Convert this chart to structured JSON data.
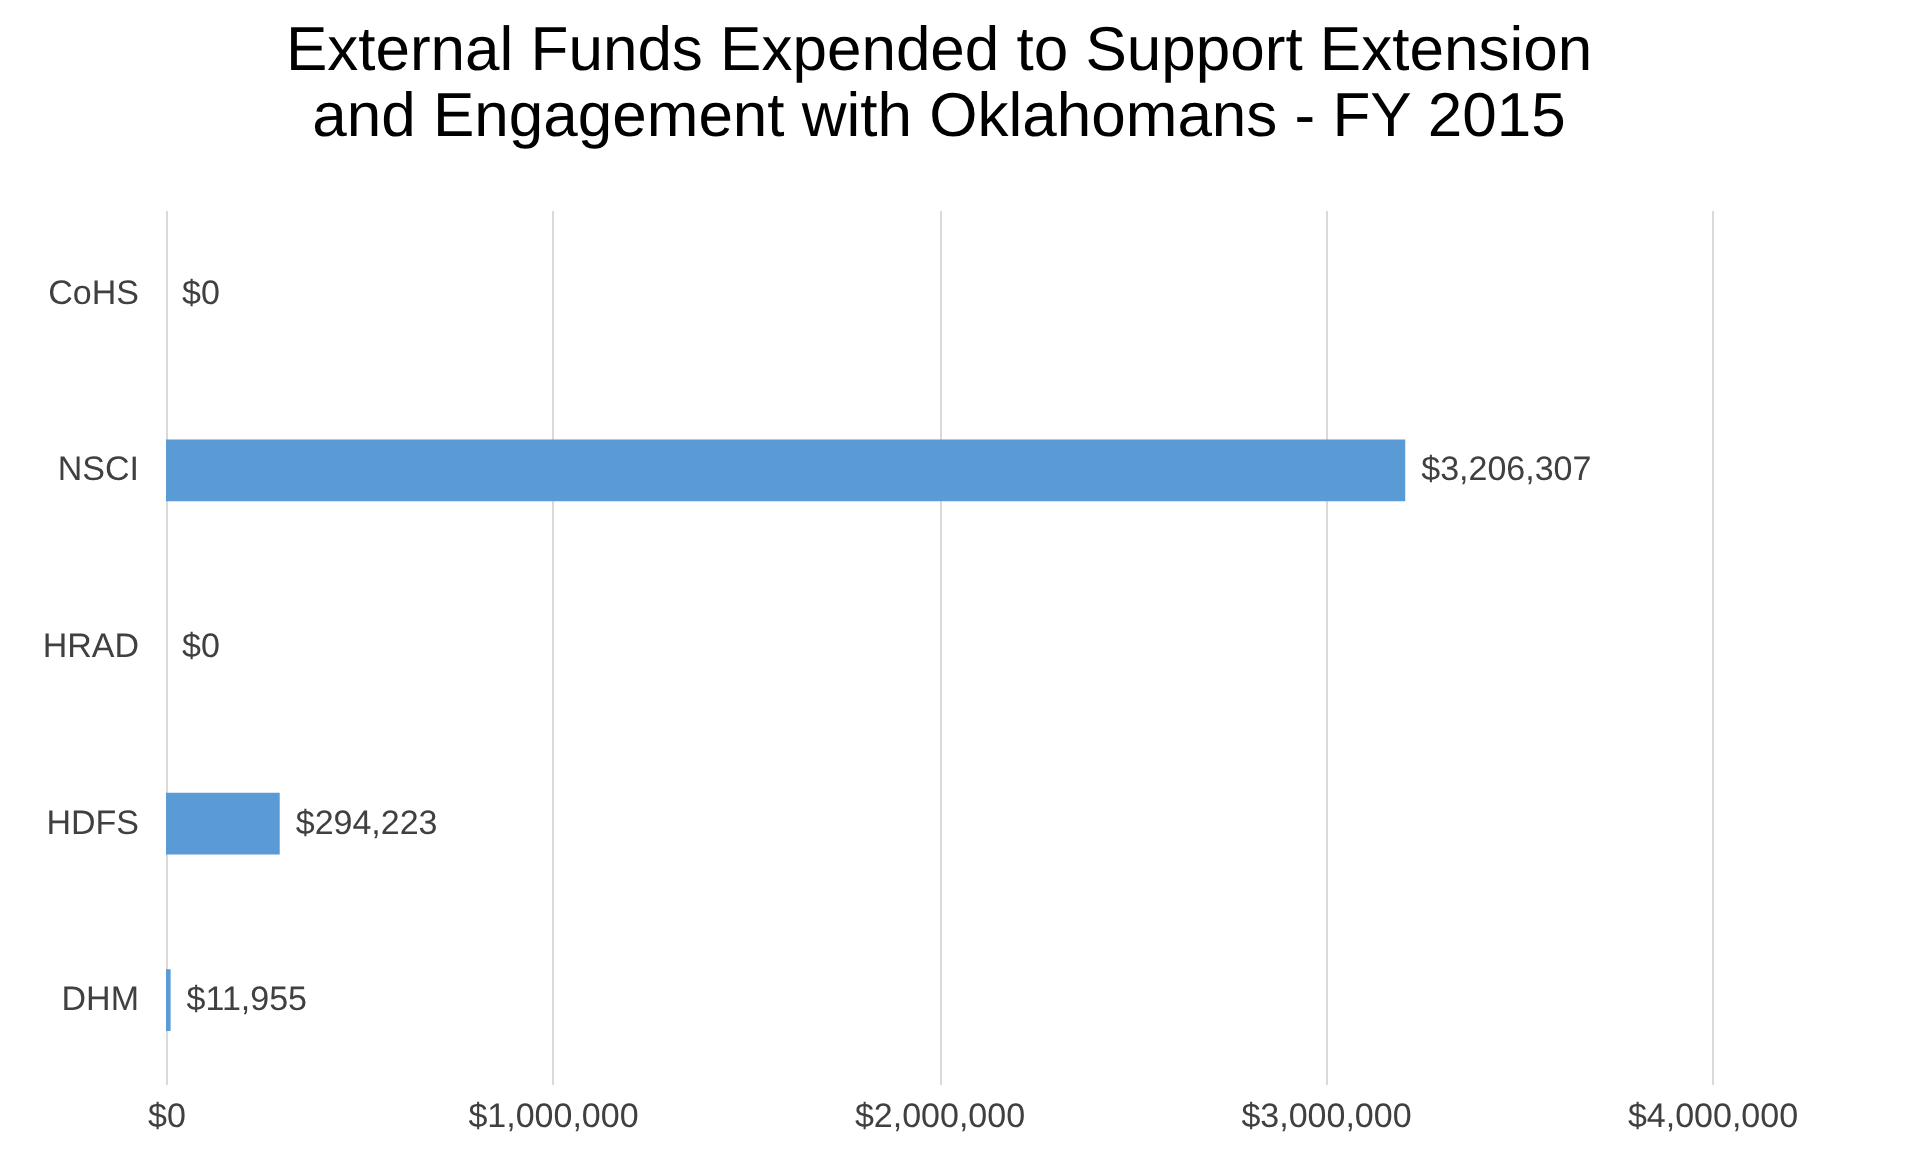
{
  "chart_data": {
    "type": "bar",
    "orientation": "horizontal",
    "title": "External Funds Expended to Support Extension\nand Engagement with Oklahomans - FY 2015",
    "categories": [
      "CoHS",
      "NSCI",
      "HRAD",
      "HDFS",
      "DHM"
    ],
    "values": [
      0,
      3206307,
      0,
      294223,
      11955
    ],
    "value_labels": [
      "$0",
      "$3,206,307",
      "$0",
      "$294,223",
      "$11,955"
    ],
    "color": "#5b9bd5",
    "xlim": [
      0,
      4000000
    ],
    "xticks": [
      {
        "value": 0,
        "label": "$0"
      },
      {
        "value": 1000000,
        "label": "$1,000,000"
      },
      {
        "value": 2000000,
        "label": "$2,000,000"
      },
      {
        "value": 3000000,
        "label": "$3,000,000"
      },
      {
        "value": 4000000,
        "label": "$4,000,000"
      }
    ],
    "grid": "x"
  }
}
